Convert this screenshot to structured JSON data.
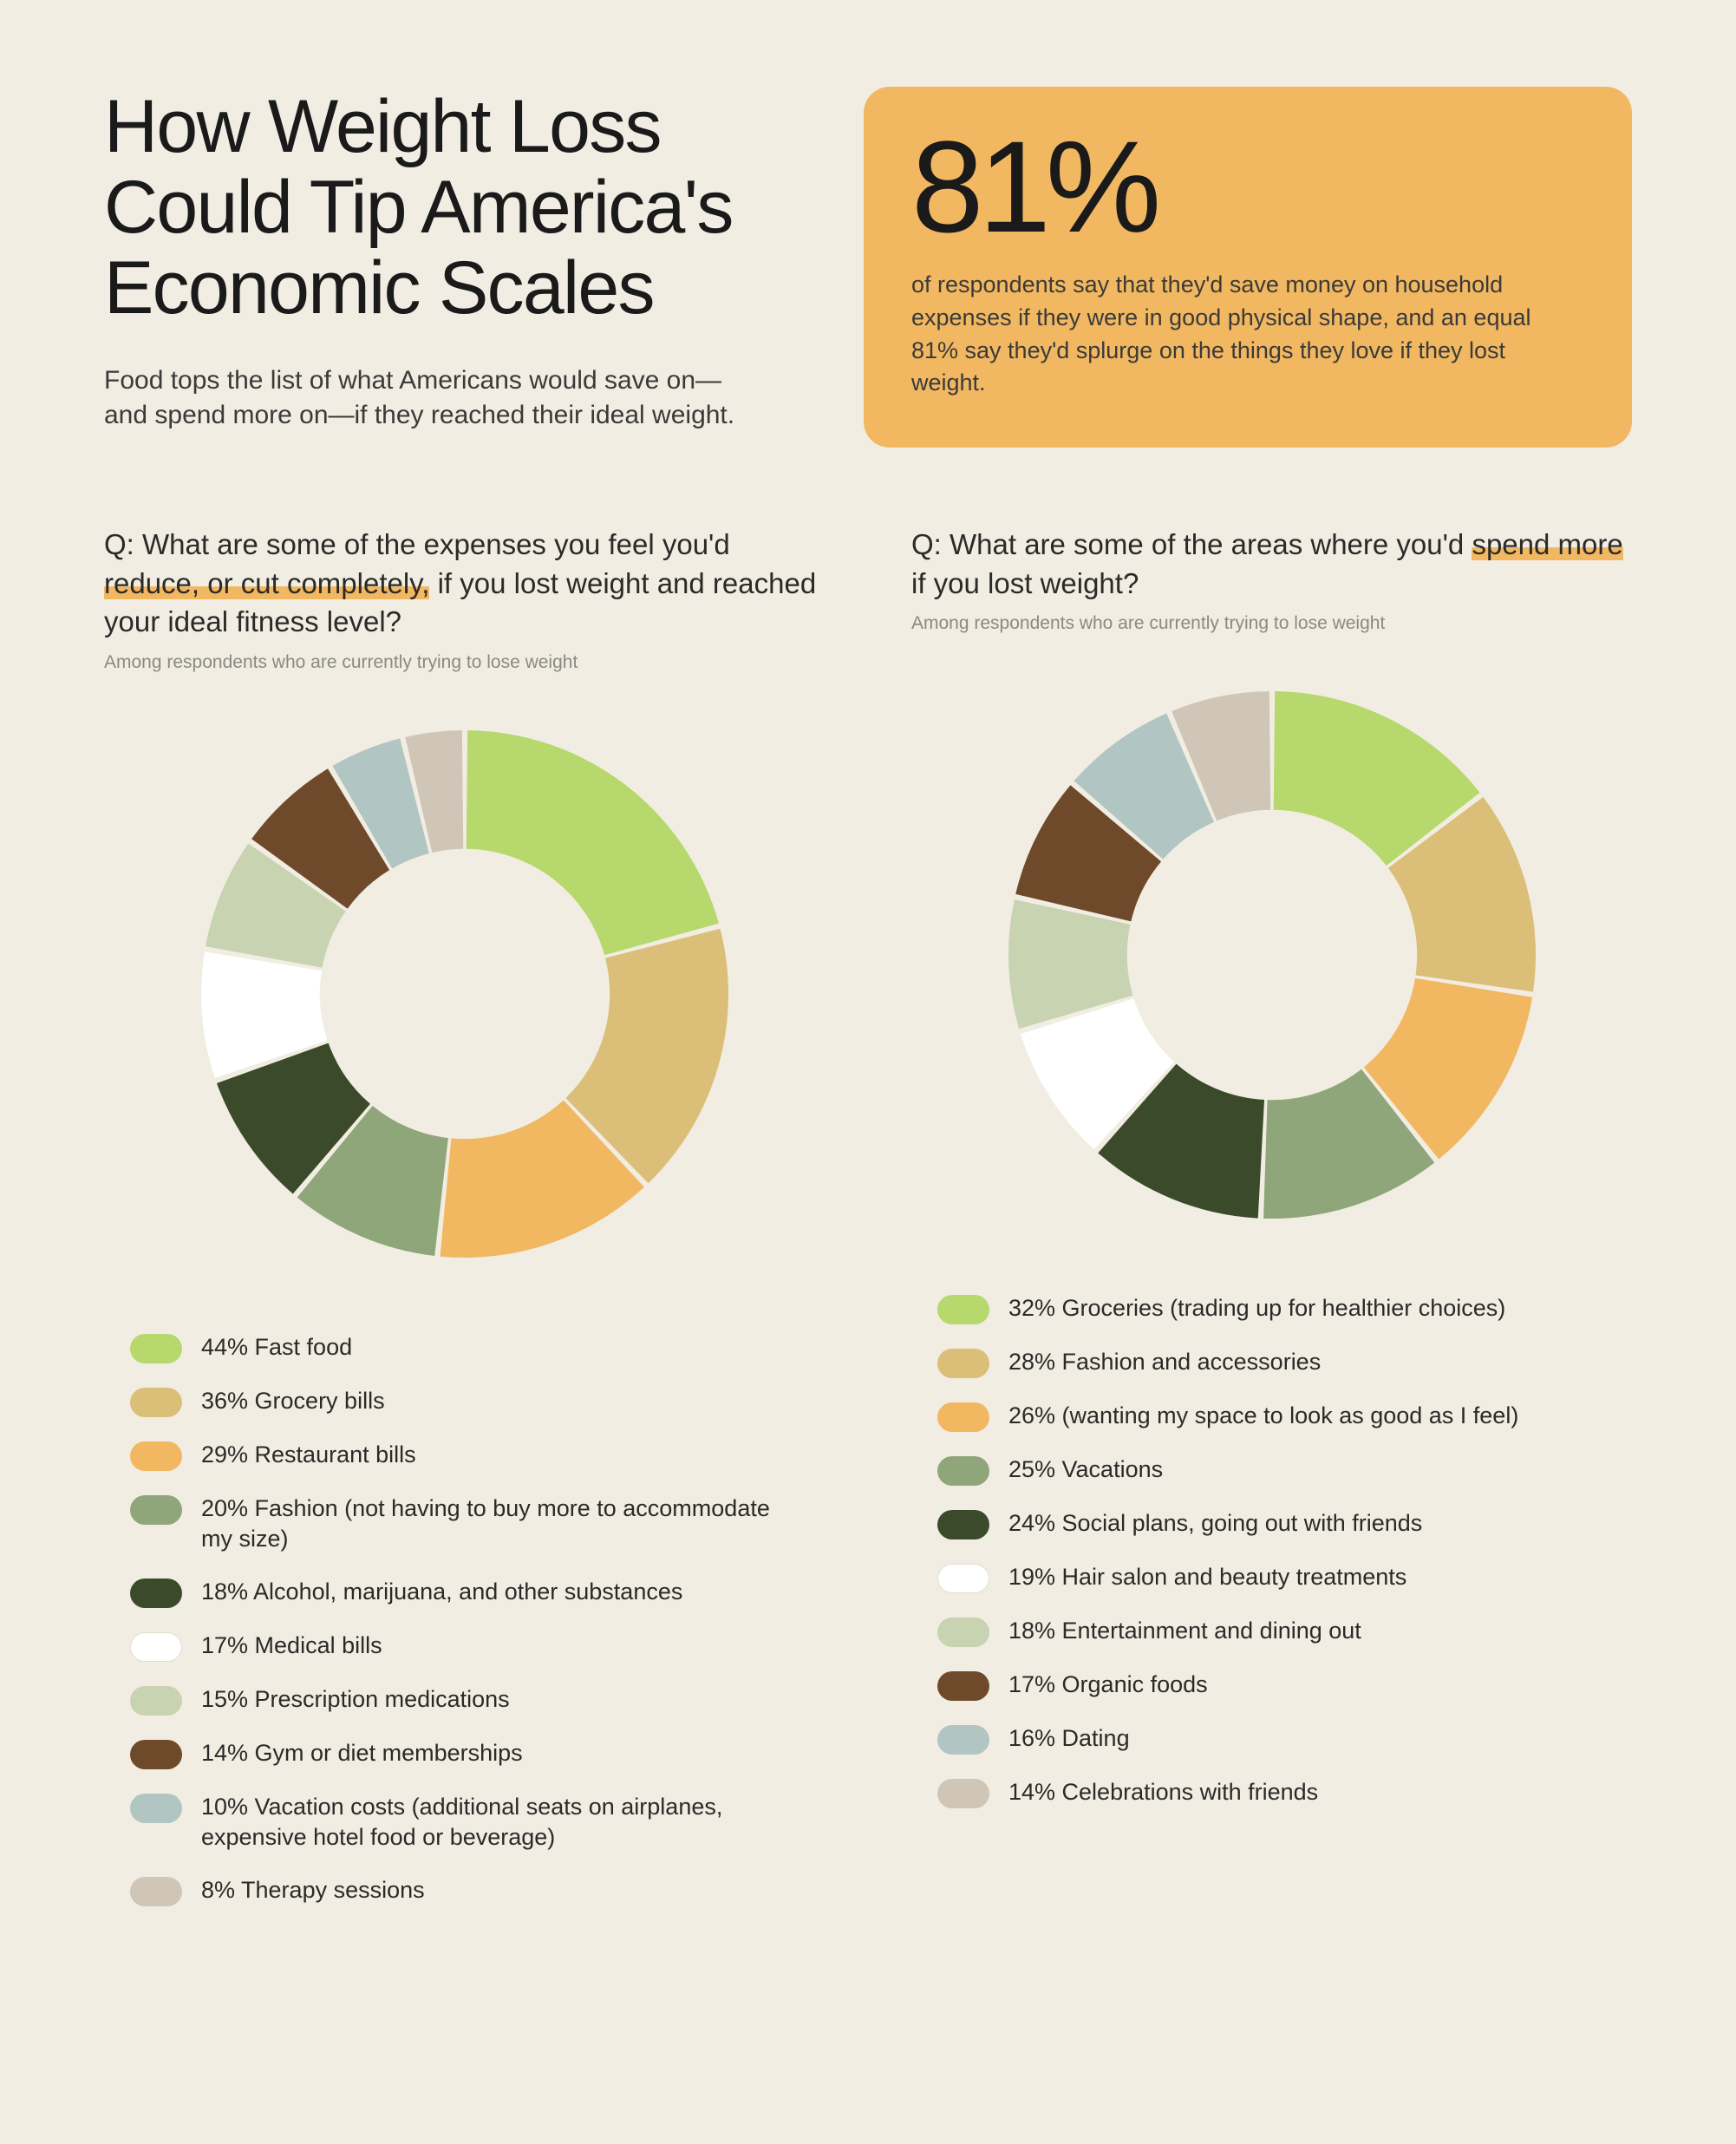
{
  "background_color": "#f2ede2",
  "headline": "How Weight Loss Could Tip America's Economic Scales",
  "subhead": "Food tops the list of what Americans would save on—and spend more on—if they reached their ideal weight.",
  "stat_box": {
    "bg_color": "#f1b761",
    "number": "81%",
    "text": "of respondents say that they'd save money on household expenses if they were in good physical shape, and an equal 81% say they'd splurge on the things they love if they lost weight."
  },
  "highlight_color": "#f1b761",
  "chart_left": {
    "question_prefix": "Q: What are some of the expenses you feel you'd ",
    "question_highlight": "reduce, or cut completely,",
    "question_suffix": " if you lost weight and reached your ideal fitness level?",
    "footnote": "Among respondents who are currently trying to lose weight",
    "type": "donut",
    "inner_radius_ratio": 0.55,
    "gap_deg": 1.2,
    "slices": [
      {
        "value": 44,
        "color": "#b6d86c",
        "label": "44% Fast food"
      },
      {
        "value": 36,
        "color": "#dbbe77",
        "label": "36% Grocery bills"
      },
      {
        "value": 29,
        "color": "#f1b761",
        "label": "29% Restaurant bills"
      },
      {
        "value": 20,
        "color": "#8fa57a",
        "label": "20% Fashion (not having to buy more to accommodate my size)"
      },
      {
        "value": 18,
        "color": "#3a4a2a",
        "label": "18% Alcohol, marijuana, and other substances"
      },
      {
        "value": 17,
        "color": "#ffffff",
        "label": "17% Medical bills"
      },
      {
        "value": 15,
        "color": "#c8d3b1",
        "label": "15% Prescription medications"
      },
      {
        "value": 14,
        "color": "#6e4a2a",
        "label": "14% Gym or diet memberships"
      },
      {
        "value": 10,
        "color": "#b1c5c2",
        "label": "10% Vacation costs (additional seats on airplanes, expensive hotel food or beverage)"
      },
      {
        "value": 8,
        "color": "#cfc6b8",
        "label": "8% Therapy sessions"
      }
    ]
  },
  "chart_right": {
    "question_prefix": "Q: What are some of the areas where you'd ",
    "question_highlight": "spend more",
    "question_suffix": " if you lost weight?",
    "footnote": "Among respondents who are currently trying to lose weight",
    "type": "donut",
    "inner_radius_ratio": 0.55,
    "gap_deg": 1.2,
    "slices": [
      {
        "value": 32,
        "color": "#b6d86c",
        "label": "32% Groceries (trading up for healthier choices)"
      },
      {
        "value": 28,
        "color": "#dbbe77",
        "label": "28% Fashion and accessories"
      },
      {
        "value": 26,
        "color": "#f1b761",
        "label": "26% (wanting my space to look as good as I feel)"
      },
      {
        "value": 25,
        "color": "#8fa57a",
        "label": "25% Vacations"
      },
      {
        "value": 24,
        "color": "#3a4a2a",
        "label": "24% Social plans, going out with friends"
      },
      {
        "value": 19,
        "color": "#ffffff",
        "label": "19% Hair salon and beauty treatments"
      },
      {
        "value": 18,
        "color": "#c8d3b1",
        "label": "18% Entertainment and dining out"
      },
      {
        "value": 17,
        "color": "#6e4a2a",
        "label": "17% Organic foods"
      },
      {
        "value": 16,
        "color": "#b1c5c2",
        "label": "16% Dating"
      },
      {
        "value": 14,
        "color": "#cfc6b8",
        "label": "14% Celebrations with friends"
      }
    ]
  }
}
